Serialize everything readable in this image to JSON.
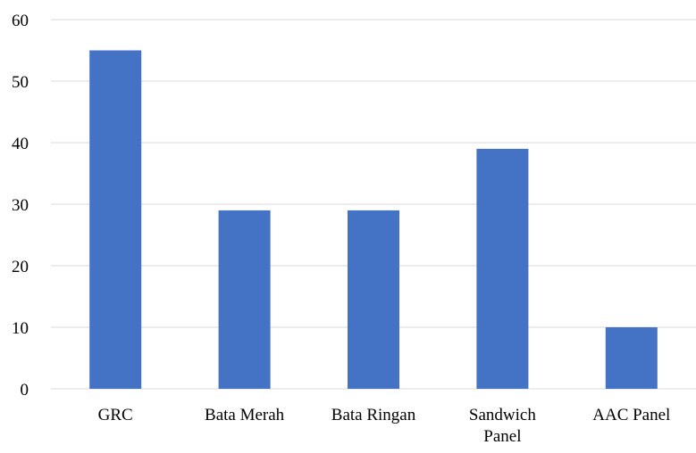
{
  "chart_data": {
    "type": "bar",
    "title": "",
    "xlabel": "",
    "ylabel": "",
    "categories": [
      [
        "GRC"
      ],
      [
        "Bata Merah"
      ],
      [
        "Bata Ringan"
      ],
      [
        "Sandwich",
        "Panel"
      ],
      [
        "AAC Panel"
      ]
    ],
    "values": [
      55,
      29,
      29,
      39,
      10
    ],
    "ylim": [
      0,
      60
    ],
    "yticks": [
      0,
      10,
      20,
      30,
      40,
      50,
      60
    ],
    "grid": true,
    "legend": "none",
    "bar_color": "#4472C4",
    "grid_color": "#D9D9D9"
  }
}
